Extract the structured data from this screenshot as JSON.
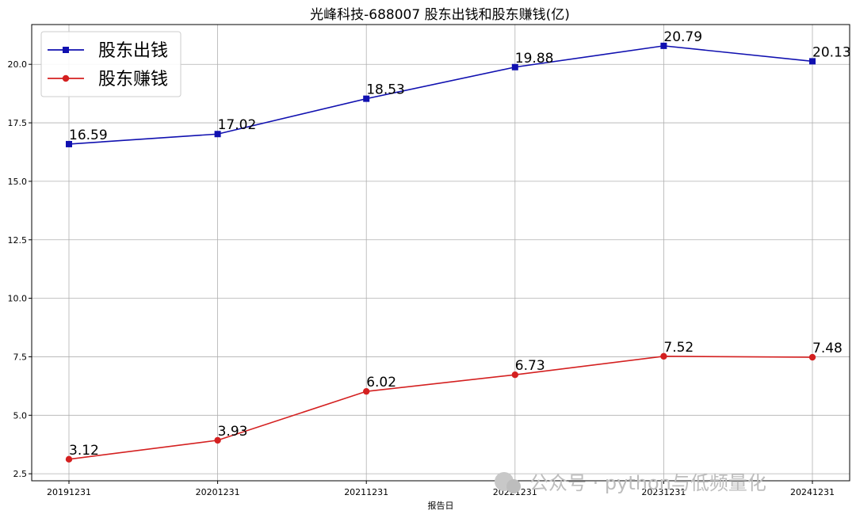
{
  "chart_data": {
    "type": "line",
    "title": "光峰科技-688007 股东出钱和股东赚钱(亿)",
    "xlabel": "报告日",
    "ylabel": "",
    "categories": [
      "20191231",
      "20201231",
      "20211231",
      "20221231",
      "20231231",
      "20241231"
    ],
    "ylim": [
      2.2,
      21.7
    ],
    "yticks": [
      2.5,
      5.0,
      7.5,
      10.0,
      12.5,
      15.0,
      17.5,
      20.0
    ],
    "ytick_labels": [
      "2.5",
      "5.0",
      "7.5",
      "10.0",
      "12.5",
      "15.0",
      "17.5",
      "20.0"
    ],
    "grid": true,
    "legend_position": "top-left",
    "series": [
      {
        "name": "股东出钱",
        "values": [
          16.59,
          17.02,
          18.53,
          19.88,
          20.79,
          20.13
        ],
        "labels": [
          "16.59",
          "17.02",
          "18.53",
          "19.88",
          "20.79",
          "20.13"
        ],
        "color": "#1010b0",
        "marker": "square"
      },
      {
        "name": "股东赚钱",
        "values": [
          3.12,
          3.93,
          6.02,
          6.73,
          7.52,
          7.48
        ],
        "labels": [
          "3.12",
          "3.93",
          "6.02",
          "6.73",
          "7.52",
          "7.48"
        ],
        "color": "#d42020",
        "marker": "circle"
      }
    ]
  },
  "watermark": {
    "text": "公众号 · python与低频量化",
    "icon": "wechat-icon"
  }
}
